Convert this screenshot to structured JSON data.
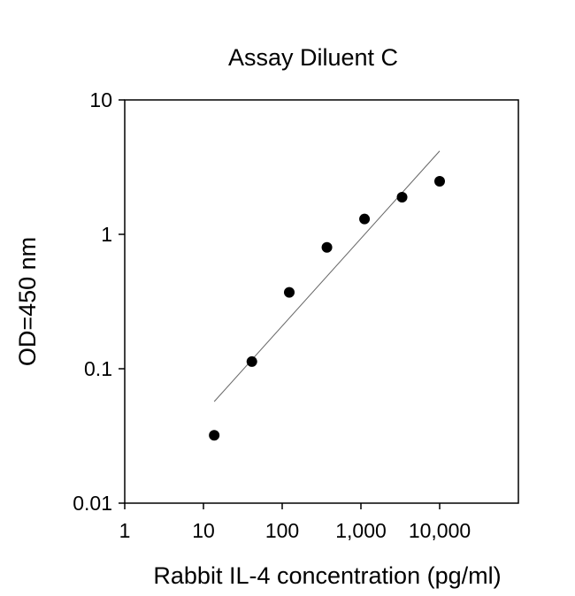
{
  "chart_data": {
    "type": "scatter",
    "title": "Assay Diluent C",
    "xlabel": "Rabbit IL-4 concentration (pg/ml)",
    "ylabel": "OD=450 nm",
    "xscale": "log",
    "yscale": "log",
    "xlim": [
      1,
      100000
    ],
    "ylim": [
      0.01,
      10
    ],
    "xticks": [
      1,
      10,
      100,
      1000,
      10000
    ],
    "xtick_labels": [
      "1",
      "10",
      "100",
      "1,000",
      "10,000"
    ],
    "yticks": [
      0.01,
      0.1,
      1,
      10
    ],
    "ytick_labels": [
      "0.01",
      "0.1",
      "1",
      "10"
    ],
    "grid": false,
    "points": {
      "x": [
        13.7,
        41.2,
        123,
        370,
        1111,
        3333,
        10000
      ],
      "y": [
        0.032,
        0.113,
        0.37,
        0.8,
        1.3,
        1.89,
        2.48
      ]
    },
    "fit_line": {
      "x": [
        13.7,
        10000
      ],
      "y": [
        0.057,
        4.17
      ]
    },
    "colors": {
      "points": "#000000",
      "fit_line": "#666666",
      "axes": "#000000"
    }
  }
}
